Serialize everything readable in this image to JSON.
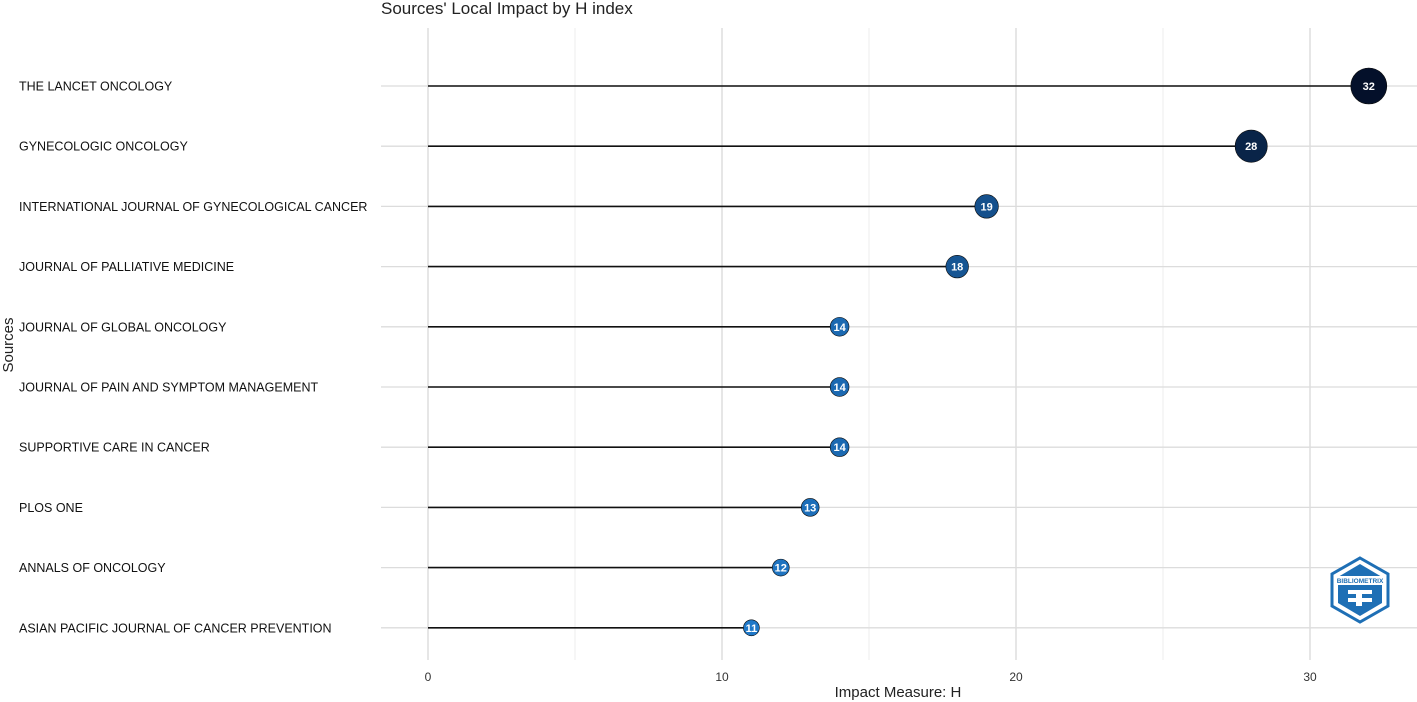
{
  "chart_data": {
    "type": "lollipop",
    "title": "Sources' Local Impact by H index",
    "xlabel": "Impact Measure: H",
    "ylabel": "Sources",
    "xlim": [
      0,
      33.5
    ],
    "xticks": [
      0,
      10,
      20,
      30
    ],
    "grid": true,
    "categories": [
      "THE LANCET ONCOLOGY",
      "GYNECOLOGIC ONCOLOGY",
      "INTERNATIONAL JOURNAL OF GYNECOLOGICAL CANCER",
      "JOURNAL OF PALLIATIVE MEDICINE",
      "JOURNAL OF GLOBAL ONCOLOGY",
      "JOURNAL OF PAIN AND SYMPTOM MANAGEMENT",
      "SUPPORTIVE CARE IN CANCER",
      "PLOS ONE",
      "ANNALS OF ONCOLOGY",
      "ASIAN PACIFIC JOURNAL OF CANCER PREVENTION"
    ],
    "values": [
      32,
      28,
      19,
      18,
      14,
      14,
      14,
      13,
      12,
      11
    ],
    "color_scale": {
      "low": "#1f78c8",
      "high": "#04102a"
    }
  },
  "logo": {
    "text": "BIBLIOMETRIX",
    "icon": "bibliometrix-logo-icon"
  }
}
